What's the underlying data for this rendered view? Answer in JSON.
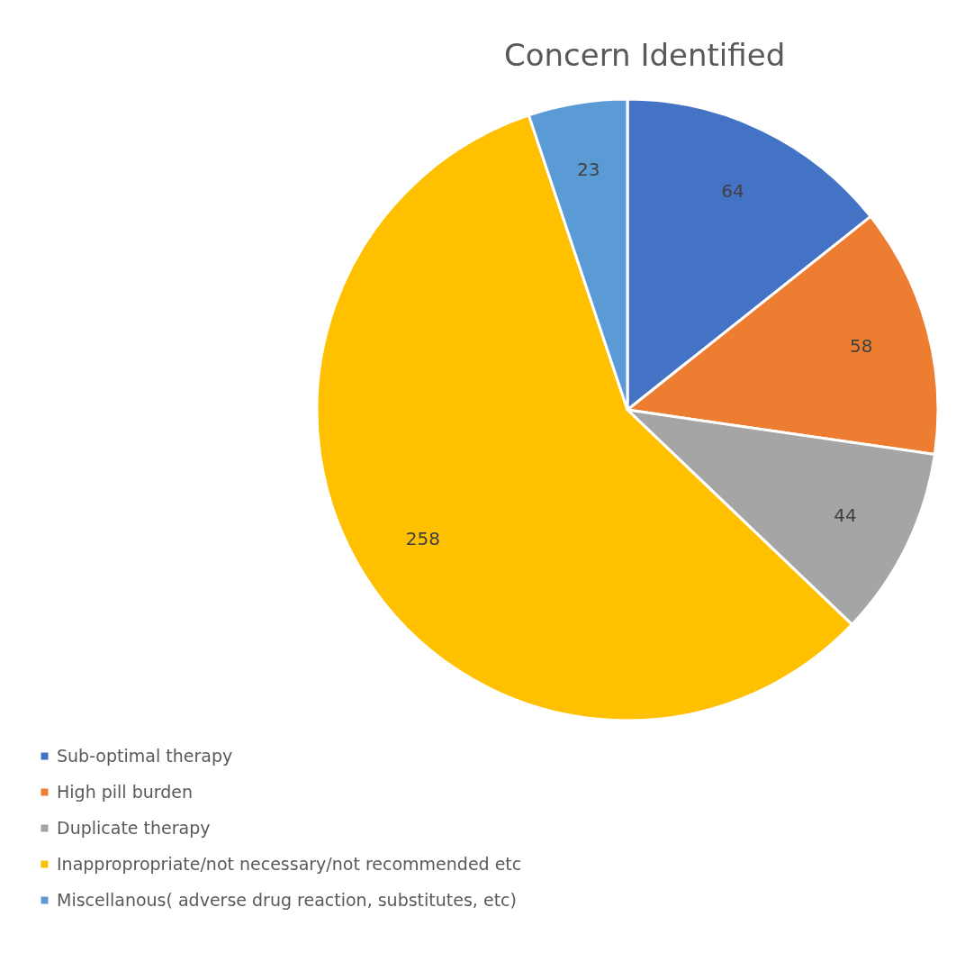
{
  "chart_data": {
    "type": "pie",
    "title": "Concern Identified",
    "categories": [
      "Sub-optimal therapy",
      "High pill burden",
      "Duplicate therapy",
      "Inappropropriate/not necessary/not recommended etc",
      "Miscellanous( adverse drug reaction, substitutes, etc)"
    ],
    "values": [
      64,
      58,
      44,
      258,
      23
    ],
    "colors": [
      "#4472c4",
      "#ed7d31",
      "#a5a5a5",
      "#ffc000",
      "#5b9bd5"
    ],
    "data_labels": true,
    "legend": "bottom left"
  }
}
